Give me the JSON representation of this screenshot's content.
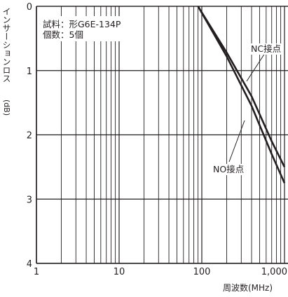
{
  "chart_data": {
    "type": "line",
    "xlabel": "周波数(MHz)",
    "ylabel": "インサーションロス",
    "yunit": "(dB)",
    "x_scale": "log",
    "xlim": [
      1,
      1000
    ],
    "ylim": [
      0,
      4
    ],
    "y_inverted": true,
    "x_ticks": [
      1,
      10,
      100,
      1000
    ],
    "x_tick_labels": [
      "1",
      "10",
      "100",
      "1,000"
    ],
    "y_ticks": [
      0,
      1,
      2,
      3,
      4
    ],
    "y_tick_labels": [
      "0",
      "1",
      "2",
      "3",
      "4"
    ],
    "grid": true,
    "annotation": {
      "sample": "試料：形G6E-134P",
      "count": "個数：5個"
    },
    "series": [
      {
        "name": "NC接点",
        "x": [
          90,
          200,
          400,
          700,
          1000
        ],
        "y": [
          0.0,
          0.72,
          1.4,
          2.1,
          2.5
        ]
      },
      {
        "name": "NO接点",
        "x": [
          90,
          200,
          400,
          700,
          1000
        ],
        "y": [
          0.0,
          0.78,
          1.55,
          2.3,
          2.75
        ]
      }
    ],
    "colors": {
      "line": "#231f20",
      "grid": "#231f20"
    }
  }
}
